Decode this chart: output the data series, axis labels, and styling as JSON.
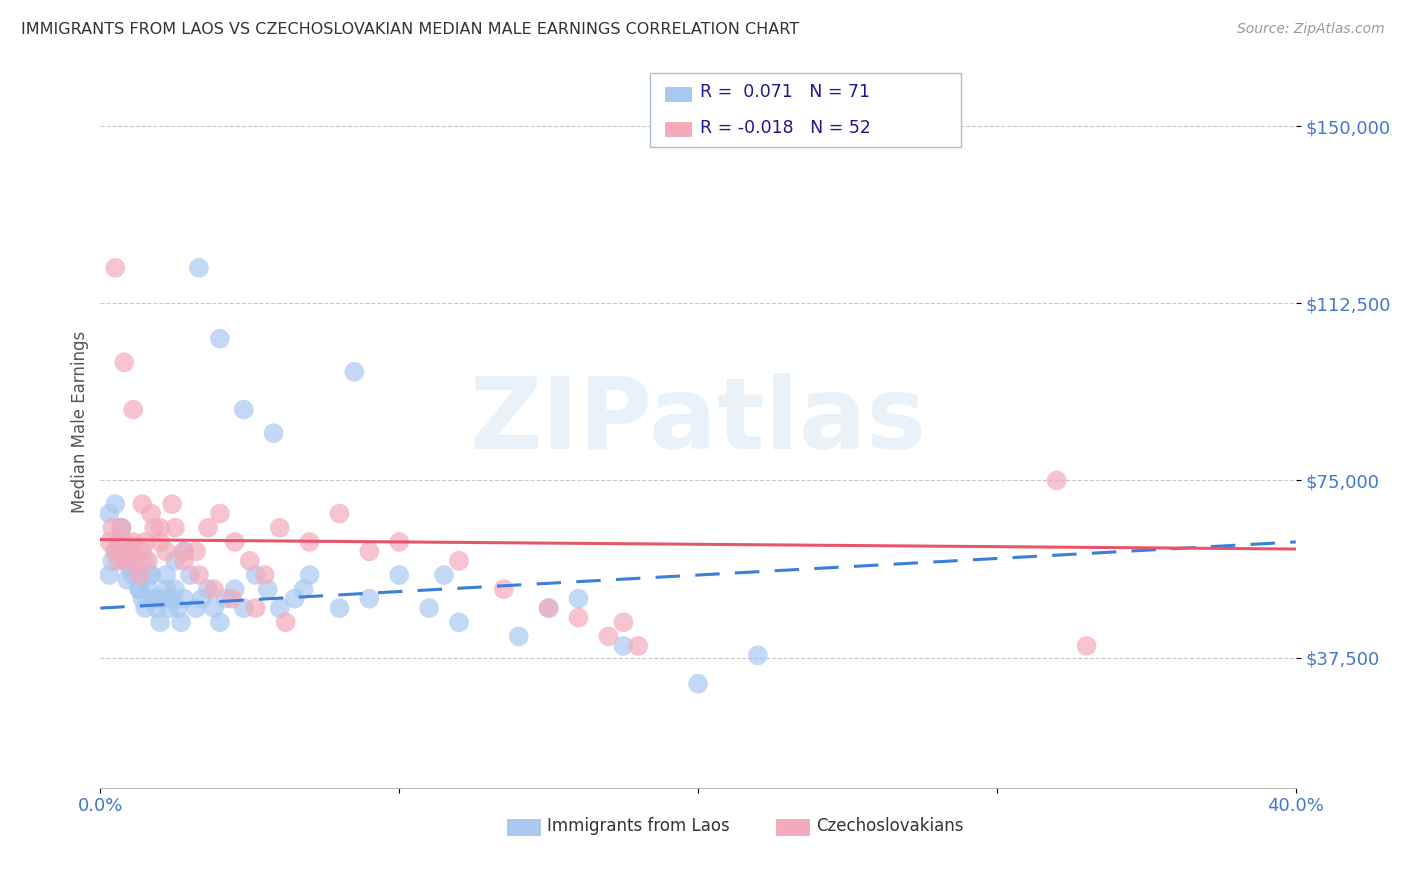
{
  "title": "IMMIGRANTS FROM LAOS VS CZECHOSLOVAKIAN MEDIAN MALE EARNINGS CORRELATION CHART",
  "source": "Source: ZipAtlas.com",
  "ylabel": "Median Male Earnings",
  "x_min": 0.0,
  "x_max": 0.4,
  "y_min": 10000,
  "y_max": 165000,
  "yticks": [
    37500,
    75000,
    112500,
    150000
  ],
  "ytick_labels": [
    "$37,500",
    "$75,000",
    "$112,500",
    "$150,000"
  ],
  "xticks": [
    0.0,
    0.1,
    0.2,
    0.3,
    0.4
  ],
  "xtick_labels": [
    "0.0%",
    "",
    "",
    "",
    "40.0%"
  ],
  "legend_label1": "Immigrants from Laos",
  "legend_label2": "Czechoslovakians",
  "blue_color": "#A8C8F0",
  "pink_color": "#F4AABB",
  "blue_line_color": "#3A7FD9",
  "pink_line_color": "#E8556A",
  "legend_text_color": "#1A1A8C",
  "background_color": "#FFFFFF",
  "grid_color": "#C8C8C8",
  "title_color": "#333333",
  "axis_label_color": "#4477CC",
  "watermark_color": "#C0D8EE",
  "watermark": "ZIPatlas",
  "blue_scatter_x": [
    0.003,
    0.004,
    0.005,
    0.006,
    0.007,
    0.008,
    0.009,
    0.01,
    0.011,
    0.012,
    0.013,
    0.014,
    0.015,
    0.016,
    0.017,
    0.018,
    0.019,
    0.02,
    0.021,
    0.022,
    0.023,
    0.024,
    0.025,
    0.026,
    0.027,
    0.028,
    0.03,
    0.032,
    0.034,
    0.036,
    0.038,
    0.04,
    0.042,
    0.045,
    0.048,
    0.052,
    0.056,
    0.06,
    0.065,
    0.07,
    0.08,
    0.09,
    0.1,
    0.11,
    0.12,
    0.14,
    0.15,
    0.16,
    0.175,
    0.2,
    0.22,
    0.003,
    0.005,
    0.007,
    0.009,
    0.011,
    0.013,
    0.015,
    0.017,
    0.019,
    0.022,
    0.025,
    0.028,
    0.033,
    0.04,
    0.048,
    0.058,
    0.068,
    0.085,
    0.115
  ],
  "blue_scatter_y": [
    55000,
    58000,
    60000,
    62000,
    65000,
    58000,
    54000,
    56000,
    60000,
    55000,
    52000,
    50000,
    48000,
    52000,
    55000,
    50000,
    48000,
    45000,
    50000,
    52000,
    48000,
    50000,
    52000,
    48000,
    45000,
    50000,
    55000,
    48000,
    50000,
    52000,
    48000,
    45000,
    50000,
    52000,
    48000,
    55000,
    52000,
    48000,
    50000,
    55000,
    48000,
    50000,
    55000,
    48000,
    45000,
    42000,
    48000,
    50000,
    40000,
    32000,
    38000,
    68000,
    70000,
    65000,
    60000,
    55000,
    52000,
    58000,
    55000,
    50000,
    55000,
    58000,
    60000,
    120000,
    105000,
    90000,
    85000,
    52000,
    98000,
    55000
  ],
  "pink_scatter_x": [
    0.003,
    0.004,
    0.005,
    0.006,
    0.007,
    0.008,
    0.009,
    0.01,
    0.011,
    0.012,
    0.013,
    0.014,
    0.015,
    0.016,
    0.018,
    0.02,
    0.022,
    0.025,
    0.028,
    0.032,
    0.036,
    0.04,
    0.045,
    0.05,
    0.055,
    0.06,
    0.07,
    0.08,
    0.09,
    0.1,
    0.12,
    0.135,
    0.15,
    0.16,
    0.17,
    0.175,
    0.18,
    0.005,
    0.008,
    0.011,
    0.014,
    0.017,
    0.02,
    0.024,
    0.028,
    0.033,
    0.038,
    0.044,
    0.052,
    0.062,
    0.32,
    0.33
  ],
  "pink_scatter_y": [
    62000,
    65000,
    60000,
    58000,
    65000,
    62000,
    58000,
    60000,
    62000,
    58000,
    55000,
    60000,
    62000,
    58000,
    65000,
    62000,
    60000,
    65000,
    58000,
    60000,
    65000,
    68000,
    62000,
    58000,
    55000,
    65000,
    62000,
    68000,
    60000,
    62000,
    58000,
    52000,
    48000,
    46000,
    42000,
    45000,
    40000,
    120000,
    100000,
    90000,
    70000,
    68000,
    65000,
    70000,
    60000,
    55000,
    52000,
    50000,
    48000,
    45000,
    75000,
    40000
  ],
  "blue_trend": [
    48000,
    62000
  ],
  "pink_trend": [
    62500,
    60500
  ]
}
